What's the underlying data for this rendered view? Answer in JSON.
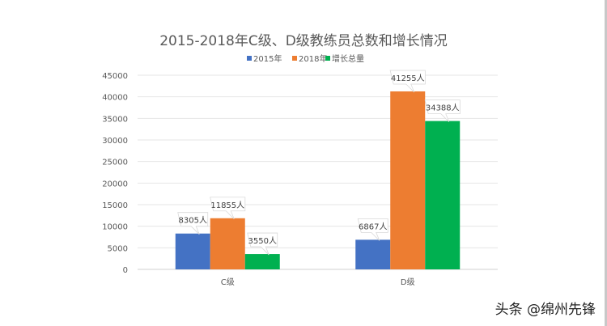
{
  "chart_data": {
    "type": "bar",
    "title": "2015-2018年C级、D级教练员总数和增长情况",
    "categories": [
      "C级",
      "D级"
    ],
    "series": [
      {
        "name": "2015年",
        "values": [
          8305,
          6867
        ],
        "color": "#4472C4"
      },
      {
        "name": "2018年",
        "values": [
          11855,
          41255
        ],
        "color": "#ED7D31"
      },
      {
        "name": "增长总量",
        "values": [
          3550,
          34388
        ],
        "color": "#00B050"
      }
    ],
    "data_label_suffix": "人",
    "ylim": [
      0,
      45000
    ],
    "yticks": [
      0,
      5000,
      10000,
      15000,
      20000,
      25000,
      30000,
      35000,
      40000,
      45000
    ],
    "grid": true,
    "legend": "top"
  },
  "watermark": "头条 @绵州先锋"
}
